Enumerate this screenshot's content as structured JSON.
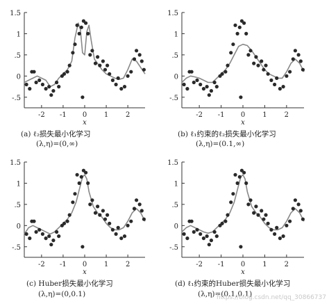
{
  "chart_data": [
    {
      "type": "scatter",
      "caption": "(a) ℓ₂损失最小化学习",
      "params": "(λ,η)=(0,∞)",
      "xlabel": "x",
      "xlim": [
        -2.8,
        2.8
      ],
      "ylim": [
        -0.75,
        1.5
      ],
      "xticks": [
        -2,
        -1,
        0,
        1,
        2
      ],
      "yticks": [
        -0.5,
        0,
        0.5,
        1,
        1.5
      ],
      "fit": {
        "x": [
          -2.8,
          -2.6,
          -2.4,
          -2.2,
          -2.0,
          -1.8,
          -1.6,
          -1.4,
          -1.2,
          -1.0,
          -0.8,
          -0.6,
          -0.45,
          -0.3,
          -0.2,
          -0.1,
          0.0,
          0.1,
          0.2,
          0.3,
          0.45,
          0.6,
          0.8,
          1.0,
          1.2,
          1.4,
          1.6,
          1.8,
          2.0,
          2.2,
          2.4,
          2.6,
          2.8
        ],
        "y": [
          -0.15,
          -0.1,
          -0.05,
          0.0,
          -0.05,
          -0.1,
          -0.25,
          -0.2,
          -0.05,
          0.05,
          0.15,
          0.35,
          0.9,
          1.25,
          1.1,
          0.55,
          0.5,
          1.05,
          1.2,
          0.85,
          0.4,
          0.3,
          0.15,
          0.05,
          0.0,
          -0.05,
          -0.08,
          -0.05,
          0.15,
          0.4,
          0.35,
          0.2,
          0.05
        ]
      }
    },
    {
      "type": "scatter",
      "caption": "(b) ℓ₁约束的ℓ₂损失最小化学习",
      "params": "(λ,η)=(0.1,∞)",
      "xlabel": "x",
      "xlim": [
        -2.8,
        2.8
      ],
      "ylim": [
        -0.75,
        1.5
      ],
      "xticks": [
        -2,
        -1,
        0,
        1,
        2
      ],
      "yticks": [
        -0.5,
        0,
        0.5,
        1,
        1.5
      ],
      "fit": {
        "x": [
          -2.8,
          -2.6,
          -2.4,
          -2.2,
          -2.0,
          -1.8,
          -1.6,
          -1.4,
          -1.2,
          -1.0,
          -0.8,
          -0.6,
          -0.4,
          -0.2,
          0.0,
          0.2,
          0.4,
          0.6,
          0.8,
          1.0,
          1.2,
          1.4,
          1.6,
          1.8,
          2.0,
          2.2,
          2.4,
          2.6,
          2.8
        ],
        "y": [
          -0.15,
          -0.05,
          0.0,
          -0.02,
          -0.05,
          -0.1,
          -0.15,
          -0.15,
          -0.05,
          0.05,
          0.15,
          0.3,
          0.5,
          0.7,
          0.75,
          0.72,
          0.6,
          0.45,
          0.3,
          0.15,
          0.05,
          0.0,
          -0.05,
          -0.05,
          0.1,
          0.3,
          0.4,
          0.3,
          0.1
        ]
      }
    },
    {
      "type": "scatter",
      "caption": "(c) Huber损失最小化学习",
      "params": "(λ,η)=(0,0.1)",
      "xlabel": "x",
      "xlim": [
        -2.8,
        2.8
      ],
      "ylim": [
        -0.75,
        1.5
      ],
      "xticks": [
        -2,
        -1,
        0,
        1,
        2
      ],
      "yticks": [
        -0.5,
        0,
        0.5,
        1,
        1.5
      ],
      "fit": {
        "x": [
          -2.8,
          -2.6,
          -2.4,
          -2.2,
          -2.0,
          -1.8,
          -1.6,
          -1.4,
          -1.2,
          -1.0,
          -0.8,
          -0.6,
          -0.4,
          -0.2,
          -0.1,
          0.0,
          0.1,
          0.2,
          0.4,
          0.6,
          0.8,
          1.0,
          1.2,
          1.4,
          1.6,
          1.8,
          2.0,
          2.2,
          2.4,
          2.6,
          2.8
        ],
        "y": [
          -0.2,
          -0.05,
          0.0,
          -0.05,
          -0.1,
          -0.15,
          -0.2,
          -0.15,
          -0.05,
          0.05,
          0.15,
          0.3,
          0.55,
          0.95,
          1.15,
          1.2,
          1.1,
          0.8,
          0.45,
          0.3,
          0.2,
          0.05,
          -0.05,
          -0.1,
          -0.1,
          -0.05,
          0.1,
          0.3,
          0.4,
          0.3,
          0.1
        ]
      }
    },
    {
      "type": "scatter",
      "caption": "(d) ℓ₁约束的Huber损失最小化学习",
      "params": "(λ,η)=(0.1,0.1)",
      "xlabel": "x",
      "xlim": [
        -2.8,
        2.8
      ],
      "ylim": [
        -0.75,
        1.5
      ],
      "xticks": [
        -2,
        -1,
        0,
        1,
        2
      ],
      "yticks": [
        -0.5,
        0,
        0.5,
        1,
        1.5
      ],
      "fit": {
        "x": [
          -2.8,
          -2.6,
          -2.4,
          -2.2,
          -2.0,
          -1.8,
          -1.6,
          -1.4,
          -1.2,
          -1.0,
          -0.8,
          -0.6,
          -0.4,
          -0.2,
          -0.1,
          0.0,
          0.1,
          0.2,
          0.4,
          0.6,
          0.8,
          1.0,
          1.2,
          1.4,
          1.6,
          1.8,
          2.0,
          2.2,
          2.4,
          2.6,
          2.8
        ],
        "y": [
          -0.15,
          -0.05,
          0.0,
          -0.05,
          -0.1,
          -0.15,
          -0.18,
          -0.15,
          -0.05,
          0.05,
          0.15,
          0.3,
          0.55,
          0.95,
          1.15,
          1.2,
          1.1,
          0.8,
          0.45,
          0.3,
          0.2,
          0.05,
          -0.05,
          -0.1,
          -0.1,
          -0.05,
          0.1,
          0.3,
          0.4,
          0.3,
          0.1
        ]
      }
    }
  ],
  "samples": {
    "x": [
      -2.7,
      -2.55,
      -2.45,
      -2.35,
      -2.25,
      -2.1,
      -1.95,
      -1.8,
      -1.65,
      -1.55,
      -1.45,
      -1.3,
      -1.2,
      -1.05,
      -0.95,
      -0.8,
      -0.7,
      -0.55,
      -0.45,
      -0.35,
      -0.25,
      -0.15,
      -0.05,
      0.05,
      0.15,
      0.25,
      0.35,
      0.5,
      0.6,
      0.7,
      0.85,
      0.95,
      1.05,
      1.15,
      1.3,
      1.45,
      1.55,
      1.7,
      1.85,
      2.0,
      2.15,
      2.3,
      2.4,
      2.55,
      2.65,
      2.75,
      -0.1
    ],
    "y": [
      -0.2,
      -0.3,
      0.1,
      0.1,
      -0.15,
      -0.1,
      -0.2,
      -0.3,
      -0.25,
      -0.45,
      -0.35,
      -0.15,
      -0.25,
      0.0,
      0.05,
      0.1,
      0.25,
      0.55,
      0.75,
      1.2,
      1.0,
      1.15,
      1.3,
      1.25,
      1.0,
      0.5,
      0.6,
      0.3,
      0.45,
      0.25,
      0.35,
      0.15,
      0.25,
      0.05,
      -0.1,
      -0.2,
      -0.05,
      -0.3,
      -0.25,
      0.0,
      0.1,
      0.4,
      0.6,
      0.5,
      0.35,
      0.15,
      -0.5
    ]
  },
  "watermark": "https://blog.csdn.net/qq_30866737"
}
